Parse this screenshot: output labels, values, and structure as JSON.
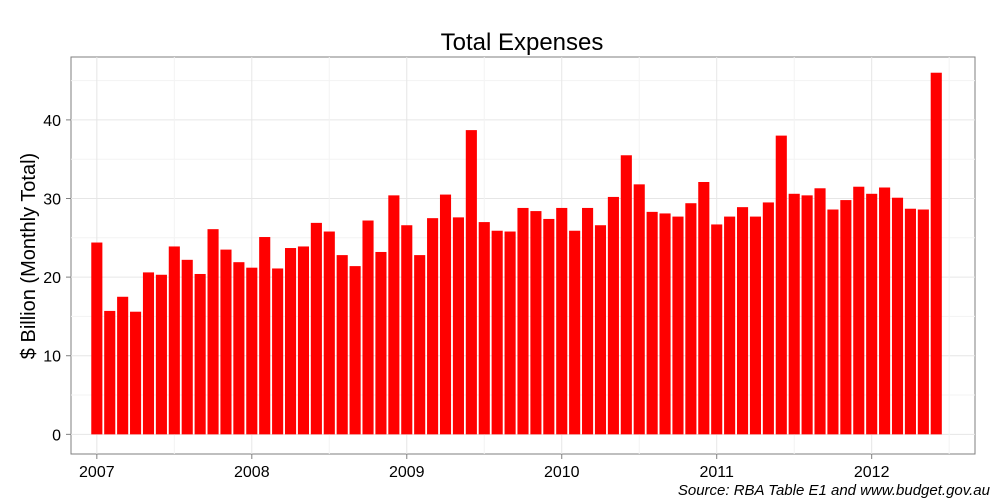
{
  "chart_data": {
    "type": "bar",
    "title": "Total Expenses",
    "xlabel": "",
    "ylabel": "$ Billion (Monthly Total)",
    "source": "Source: RBA Table E1 and www.budget.gov.au",
    "bar_color": "#ff0000",
    "grid": true,
    "x_ticks": [
      "2007",
      "2008",
      "2009",
      "2010",
      "2011",
      "2012"
    ],
    "y_ticks": [
      0,
      10,
      20,
      30,
      40
    ],
    "ylim": [
      -2.5,
      48
    ],
    "xlim": [
      "2006-11",
      "2012-09"
    ],
    "series": [
      {
        "start": "2007-01",
        "values": [
          24.4,
          15.7,
          17.5,
          15.6,
          20.6,
          20.3,
          23.9,
          22.2,
          20.4,
          26.1,
          23.5,
          21.9,
          21.2,
          25.1,
          21.1,
          23.7,
          23.9,
          26.9,
          25.8,
          22.8,
          21.4,
          27.2,
          23.2,
          30.4,
          26.6,
          22.8,
          27.5,
          30.5,
          27.6,
          38.7,
          27.0,
          25.9,
          25.8,
          28.8,
          28.4,
          27.4,
          28.8,
          25.9,
          28.8,
          26.6,
          30.2,
          35.5,
          31.8,
          28.3,
          28.1,
          27.7,
          29.4,
          32.1,
          26.7,
          27.7,
          28.9,
          27.7,
          29.5,
          38.0,
          30.6,
          30.4,
          31.3,
          28.6,
          29.8,
          31.5,
          30.6,
          31.4,
          30.1,
          28.7,
          28.6,
          46.0
        ]
      }
    ]
  }
}
